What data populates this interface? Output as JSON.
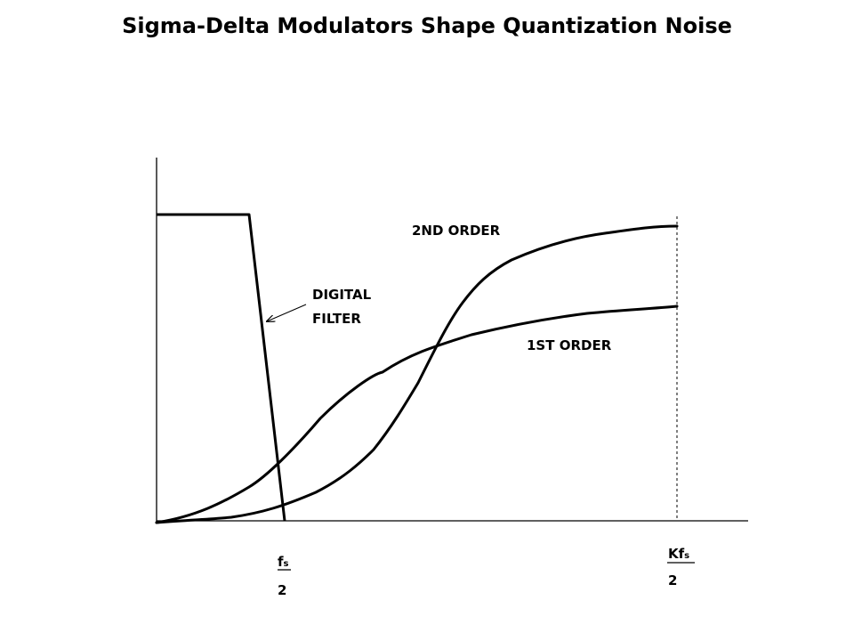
{
  "title": "Sigma-Delta Modulators Shape Quantization Noise",
  "labels": {
    "second_order": "2ND ORDER",
    "first_order": "1ST ORDER",
    "digital_filter_line1": "DIGITAL",
    "digital_filter_line2": "FILTER"
  },
  "axis": {
    "fs_main": "f",
    "fs_sub": "s",
    "fs_denominator": "2",
    "kfs_main": "Kf",
    "kfs_sub": "s",
    "kfs_denominator": "2"
  }
}
